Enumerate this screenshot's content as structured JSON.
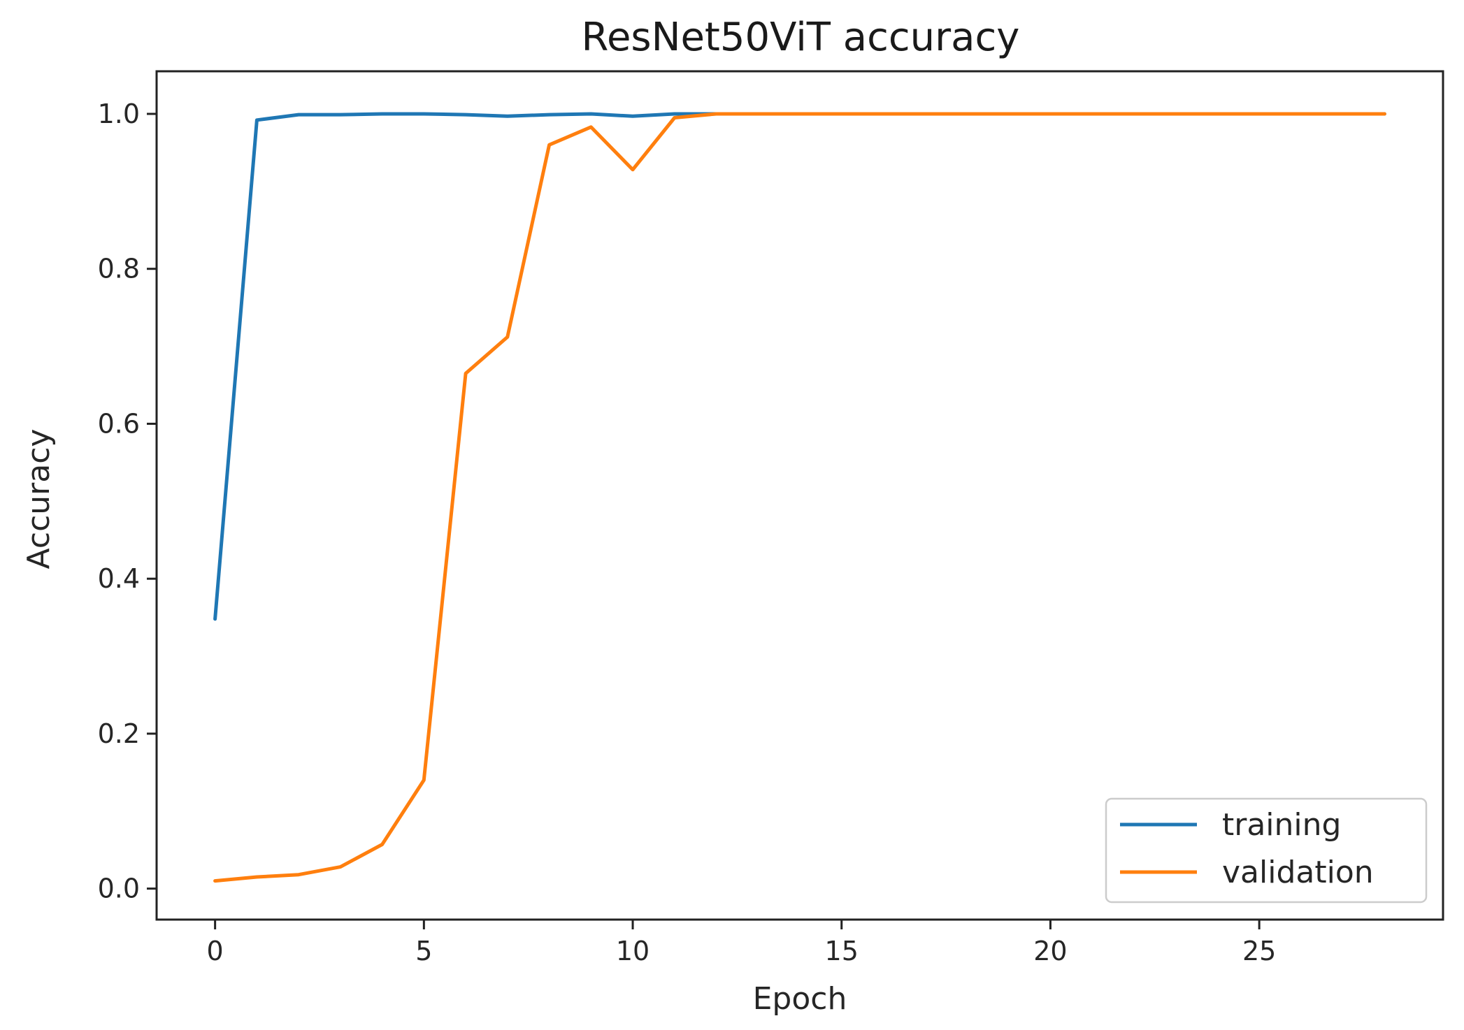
{
  "chart_data": {
    "type": "line",
    "title": "ResNet50ViT  accuracy",
    "xlabel": "Epoch",
    "ylabel": "Accuracy",
    "xlim": [
      -1.4,
      29.4
    ],
    "ylim": [
      -0.04,
      1.055
    ],
    "xticks": [
      0,
      5,
      10,
      15,
      20,
      25
    ],
    "yticks": [
      0.0,
      0.2,
      0.4,
      0.6,
      0.8,
      1.0
    ],
    "ytick_labels": [
      "0.0",
      "0.2",
      "0.4",
      "0.6",
      "0.8",
      "1.0"
    ],
    "grid": false,
    "legend_position": "lower-right",
    "x": [
      0,
      1,
      2,
      3,
      4,
      5,
      6,
      7,
      8,
      9,
      10,
      11,
      12,
      13,
      14,
      15,
      16,
      17,
      18,
      19,
      20,
      21,
      22,
      23,
      24,
      25,
      26,
      27,
      28
    ],
    "series": [
      {
        "name": "training",
        "color": "#1f77b4",
        "values": [
          0.348,
          0.992,
          0.999,
          0.999,
          1.0,
          1.0,
          0.999,
          0.997,
          0.999,
          1.0,
          0.997,
          1.0,
          1.0,
          1.0,
          1.0,
          1.0,
          1.0,
          1.0,
          1.0,
          1.0,
          1.0,
          1.0,
          1.0,
          1.0,
          1.0,
          1.0,
          1.0,
          1.0,
          1.0
        ]
      },
      {
        "name": "validation",
        "color": "#ff7f0e",
        "values": [
          0.01,
          0.015,
          0.018,
          0.028,
          0.057,
          0.14,
          0.665,
          0.712,
          0.96,
          0.983,
          0.928,
          0.995,
          1.0,
          1.0,
          1.0,
          1.0,
          1.0,
          1.0,
          1.0,
          1.0,
          1.0,
          1.0,
          1.0,
          1.0,
          1.0,
          1.0,
          1.0,
          1.0,
          1.0
        ]
      }
    ]
  }
}
